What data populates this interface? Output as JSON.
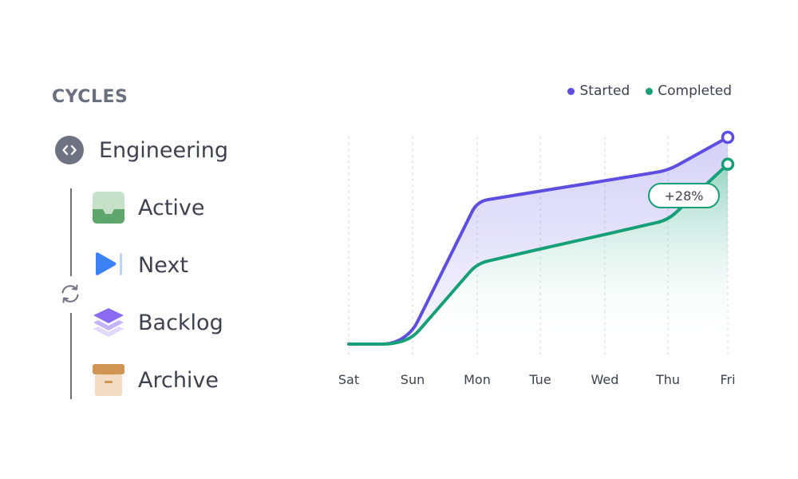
{
  "sidebar": {
    "title": "CYCLES",
    "group": {
      "label": "Engineering",
      "icon": "code-brackets-icon"
    },
    "cycle_icon": "refresh-icon",
    "items": [
      {
        "label": "Active",
        "icon": "inbox-tray-icon",
        "color": "#5fa66c"
      },
      {
        "label": "Next",
        "icon": "play-next-icon",
        "color": "#3b82f6"
      },
      {
        "label": "Backlog",
        "icon": "layers-stack-icon",
        "color": "#8b6cf0"
      },
      {
        "label": "Archive",
        "icon": "archive-box-icon",
        "color": "#d09553"
      }
    ]
  },
  "chart_data": {
    "type": "area",
    "categories": [
      "Sat",
      "Sun",
      "Mon",
      "Tue",
      "Wed",
      "Thu",
      "Fri"
    ],
    "series": [
      {
        "name": "Started",
        "color": "#5d4de0",
        "points": [
          [
            0,
            0
          ],
          [
            0.7,
            0
          ],
          [
            1,
            0.06
          ],
          [
            2,
            0.69
          ],
          [
            3,
            0.74
          ],
          [
            4,
            0.79
          ],
          [
            5,
            0.84
          ],
          [
            6,
            1.0
          ]
        ]
      },
      {
        "name": "Completed",
        "color": "#17a077",
        "points": [
          [
            0,
            0
          ],
          [
            0.7,
            0
          ],
          [
            1,
            0.03
          ],
          [
            2,
            0.39
          ],
          [
            3,
            0.46
          ],
          [
            4,
            0.53
          ],
          [
            5,
            0.6
          ],
          [
            6,
            0.87
          ]
        ]
      }
    ],
    "annotation": "+28%",
    "grid": "vertical-dotted",
    "legend_position": "top-right"
  }
}
